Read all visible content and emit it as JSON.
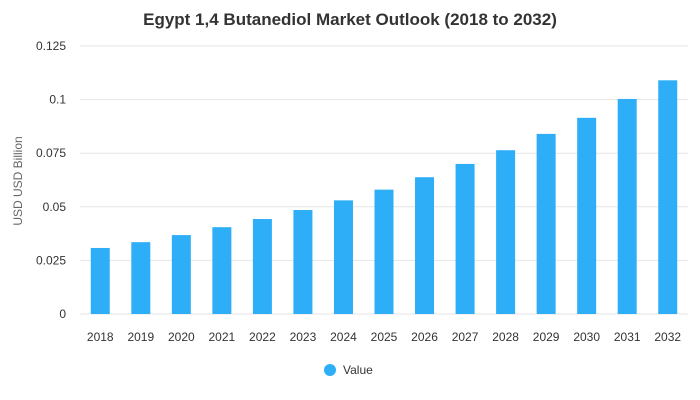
{
  "chart_data": {
    "type": "bar",
    "title": "Egypt 1,4 Butanediol Market Outlook (2018 to 2032)",
    "xlabel": "",
    "ylabel": "USD USD Billion",
    "categories": [
      "2018",
      "2019",
      "2020",
      "2021",
      "2022",
      "2023",
      "2024",
      "2025",
      "2026",
      "2027",
      "2028",
      "2029",
      "2030",
      "2031",
      "2032"
    ],
    "series": [
      {
        "name": "Value",
        "color": "#2eaef7",
        "values": [
          0.0308,
          0.0335,
          0.0368,
          0.0405,
          0.0443,
          0.0485,
          0.053,
          0.058,
          0.0638,
          0.07,
          0.0764,
          0.084,
          0.0915,
          0.1003,
          0.109
        ]
      }
    ],
    "yticks": [
      "0",
      "0.025",
      "0.05",
      "0.075",
      "0.1",
      "0.125"
    ],
    "ylim": [
      0,
      0.125
    ],
    "grid": true,
    "legend_position": "bottom-center"
  }
}
